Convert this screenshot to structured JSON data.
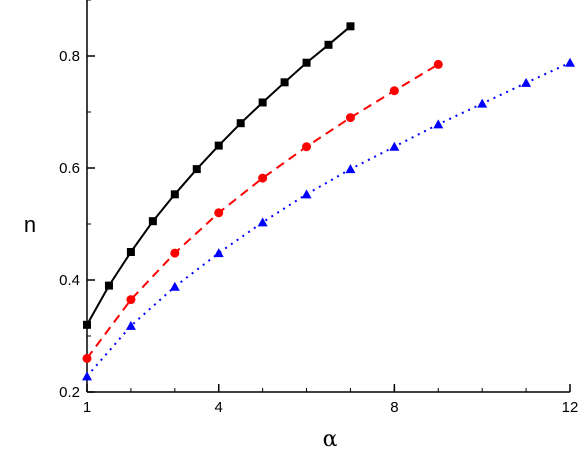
{
  "chart_data": {
    "type": "line",
    "title": "",
    "xlabel": "α",
    "ylabel": "n",
    "xlim": [
      1,
      12
    ],
    "ylim": [
      0.2,
      0.9
    ],
    "grid": false,
    "legend": "none",
    "x_ticks": [
      {
        "value": 1,
        "label": "1"
      },
      {
        "value": 4,
        "label": "4"
      },
      {
        "value": 8,
        "label": "8"
      },
      {
        "value": 12,
        "label": "12"
      }
    ],
    "y_ticks": [
      {
        "value": 0.2,
        "label": "0.2"
      },
      {
        "value": 0.4,
        "label": "0.4"
      },
      {
        "value": 0.6,
        "label": "0.6"
      },
      {
        "value": 0.8,
        "label": "0.8"
      }
    ],
    "series": [
      {
        "color": "#000000",
        "marker": "square",
        "line_style": "solid",
        "x": [
          1,
          1.5,
          2,
          2.5,
          3,
          3.5,
          4,
          4.5,
          5,
          5.5,
          6,
          6.5,
          7
        ],
        "y": [
          0.32,
          0.39,
          0.45,
          0.505,
          0.553,
          0.598,
          0.64,
          0.68,
          0.717,
          0.753,
          0.788,
          0.82,
          0.853
        ]
      },
      {
        "color": "#ff0000",
        "marker": "circle",
        "line_style": "dashed",
        "x": [
          1,
          2,
          3,
          4,
          5,
          6,
          7,
          8,
          9
        ],
        "y": [
          0.26,
          0.365,
          0.448,
          0.52,
          0.582,
          0.638,
          0.69,
          0.738,
          0.785
        ]
      },
      {
        "color": "#0000ff",
        "marker": "triangle",
        "line_style": "dotted",
        "x": [
          1,
          2,
          3,
          4,
          5,
          6,
          7,
          8,
          9,
          10,
          11,
          12
        ],
        "y": [
          0.228,
          0.318,
          0.388,
          0.448,
          0.503,
          0.553,
          0.598,
          0.638,
          0.678,
          0.715,
          0.752,
          0.788
        ]
      }
    ]
  }
}
